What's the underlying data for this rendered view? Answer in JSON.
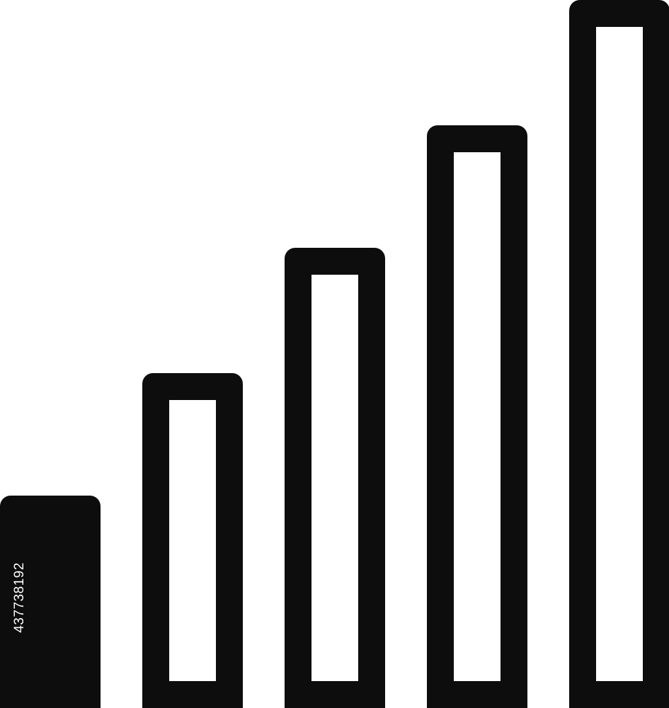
{
  "icon": {
    "name": "signal-strength-icon",
    "stroke_color": "#0d0d0d",
    "fill_background": "#ffffff",
    "total_bars": 5,
    "active_bars": 1,
    "bar_levels": [
      1,
      2,
      3,
      4,
      5
    ]
  },
  "watermark": {
    "text": "437738192"
  }
}
